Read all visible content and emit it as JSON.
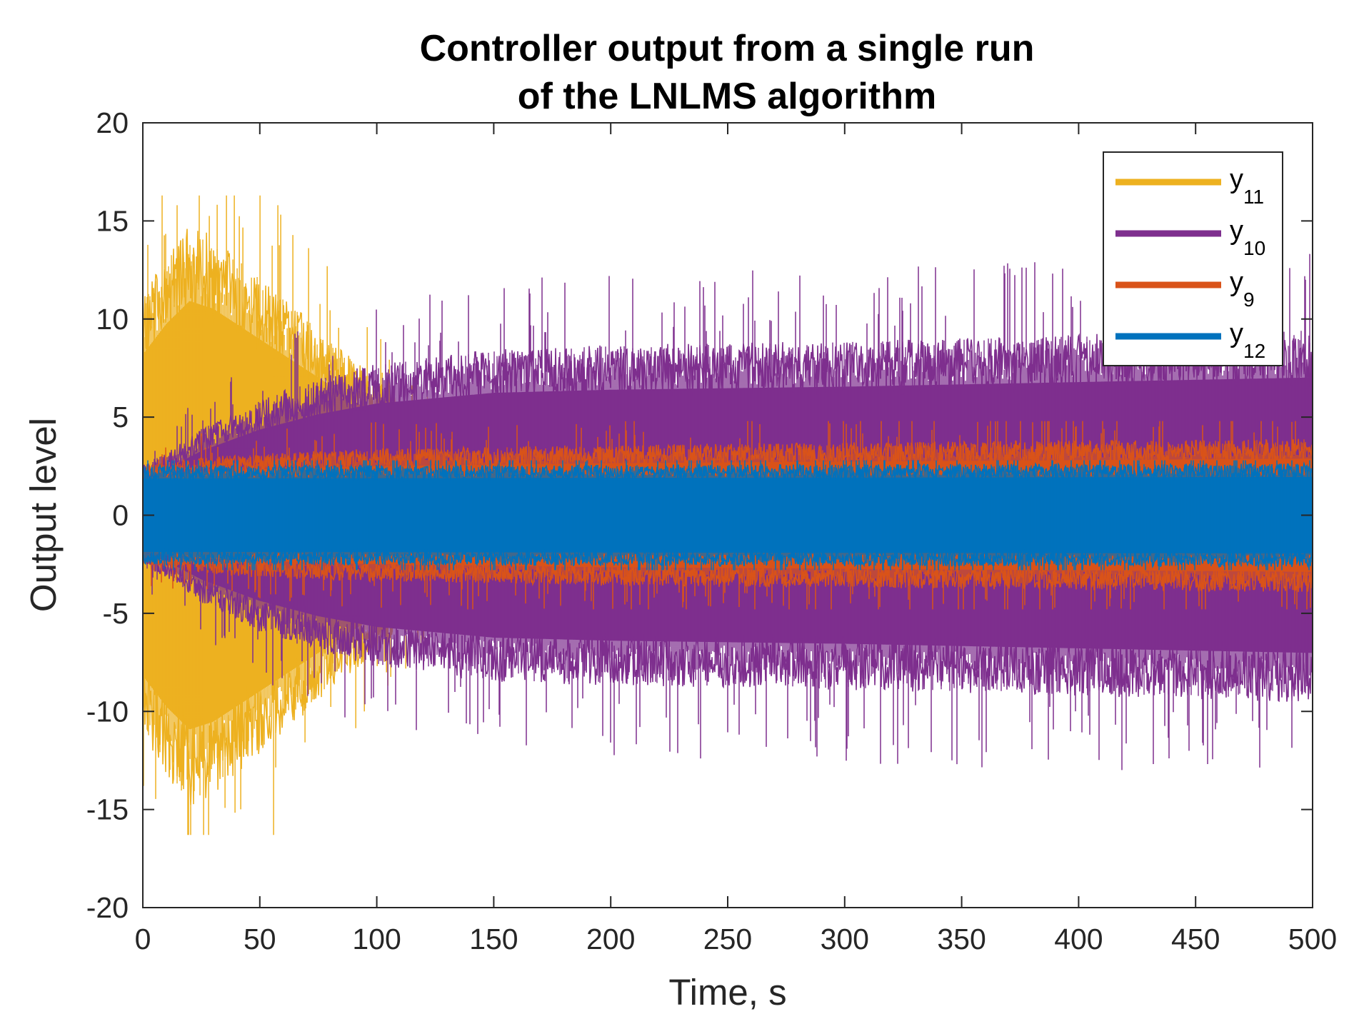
{
  "chart_data": {
    "type": "line",
    "title_lines": [
      "Controller output from a single run",
      "of the LNLMS algorithm"
    ],
    "xlabel": "Time, s",
    "ylabel": "Output level",
    "xlim": [
      0,
      500
    ],
    "ylim": [
      -20,
      20
    ],
    "x_ticks": [
      0,
      50,
      100,
      150,
      200,
      250,
      300,
      350,
      400,
      450,
      500
    ],
    "x_tick_labels": [
      "0",
      "50",
      "100",
      "150",
      "200",
      "250",
      "300",
      "350",
      "400",
      "450",
      "500"
    ],
    "y_ticks": [
      20,
      15,
      10,
      5,
      0,
      -5,
      -10,
      -15,
      -20
    ],
    "y_tick_labels": [
      "20",
      "15",
      "10",
      "5",
      "0",
      "-5",
      "-10",
      "-15",
      "-20"
    ],
    "grid": false,
    "legend_position": "top-right",
    "draw_order": [
      "y11",
      "y10",
      "y9",
      "y12"
    ],
    "series": [
      {
        "id": "y11",
        "name": "y",
        "subscript": "11",
        "color": "#EDB120",
        "envelope_times": [
          0,
          5,
          10,
          20,
          30,
          40,
          50,
          60,
          70,
          80,
          90,
          100,
          110,
          120,
          130
        ],
        "envelope_amplitudes": [
          10.5,
          11.5,
          12.5,
          14.0,
          13.5,
          12.5,
          11.5,
          10.5,
          9.5,
          8.5,
          7.5,
          6.5,
          5.5,
          4.5,
          3.5
        ],
        "end_time": 135,
        "peak": 16.3
      },
      {
        "id": "y10",
        "name": "y",
        "subscript": "10",
        "color": "#7E2F8E",
        "envelope_times": [
          0,
          10,
          25,
          50,
          75,
          100,
          150,
          200,
          300,
          400,
          500
        ],
        "envelope_amplitudes": [
          2.5,
          3.0,
          4.2,
          5.6,
          6.6,
          7.3,
          8.0,
          8.2,
          8.4,
          8.7,
          9.0
        ],
        "end_time": 500,
        "peak": 13.6
      },
      {
        "id": "y9",
        "name": "y",
        "subscript": "9",
        "color": "#D95319",
        "envelope_times": [
          0,
          25,
          50,
          100,
          200,
          300,
          400,
          500
        ],
        "envelope_amplitudes": [
          2.4,
          2.8,
          3.0,
          3.2,
          3.4,
          3.5,
          3.6,
          3.7
        ],
        "end_time": 500,
        "peak": 4.8
      },
      {
        "id": "y12",
        "name": "y",
        "subscript": "12",
        "color": "#0072BD",
        "envelope_times": [
          0,
          500
        ],
        "envelope_amplitudes": [
          2.4,
          2.5
        ],
        "end_time": 500,
        "peak": 2.8
      }
    ],
    "legend_order": [
      "y11",
      "y10",
      "y9",
      "y12"
    ]
  }
}
